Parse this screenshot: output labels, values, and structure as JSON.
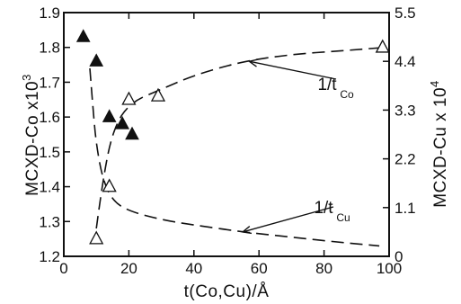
{
  "chart_data": {
    "type": "scatter",
    "title": "",
    "xlabel": "t(Co,Cu)/Å",
    "ylabel_left": "MCXD-Co x10",
    "ylabel_left_exp": "3",
    "ylabel_right": "MCXD-Cu x 10",
    "ylabel_right_exp": "4",
    "xlim": [
      0,
      100
    ],
    "ylim_left": [
      1.2,
      1.9
    ],
    "ylim_right": [
      0,
      5.5
    ],
    "x_ticks": [
      "0",
      "20",
      "40",
      "60",
      "80",
      "100"
    ],
    "x_tick_values": [
      0,
      20,
      40,
      60,
      80,
      100
    ],
    "y_left_ticks": [
      "1.2",
      "1.3",
      "1.4",
      "1.5",
      "1.6",
      "1.7",
      "1.8",
      "1.9"
    ],
    "y_left_tick_values": [
      1.2,
      1.3,
      1.4,
      1.5,
      1.6,
      1.7,
      1.8,
      1.9
    ],
    "y_right_ticks": [
      "0",
      "1.1",
      "2.2",
      "3.3",
      "4.4",
      "5.5"
    ],
    "y_right_tick_values": [
      0,
      1.1,
      2.2,
      3.3,
      4.4,
      5.5
    ],
    "grid": false,
    "series": [
      {
        "marker": "filled-triangle",
        "axis": "left",
        "x": [
          6,
          10,
          14,
          18,
          21
        ],
        "y": [
          1.83,
          1.76,
          1.6,
          1.58,
          1.55
        ]
      },
      {
        "marker": "open-triangle",
        "axis": "left",
        "x": [
          10,
          14,
          20,
          29,
          98
        ],
        "y": [
          1.25,
          1.4,
          1.65,
          1.66,
          1.8
        ]
      }
    ],
    "curves": [
      {
        "style": "dashed",
        "axis": "left",
        "x": [
          8,
          9,
          10,
          12,
          15,
          20,
          30,
          40,
          55,
          70,
          85,
          97
        ],
        "y": [
          1.74,
          1.62,
          1.52,
          1.42,
          1.36,
          1.33,
          1.305,
          1.29,
          1.27,
          1.255,
          1.24,
          1.23
        ]
      },
      {
        "style": "dashed",
        "axis": "left",
        "x": [
          10,
          12,
          15,
          20,
          30,
          40,
          55,
          70,
          85,
          99
        ],
        "y": [
          1.28,
          1.42,
          1.56,
          1.64,
          1.68,
          1.72,
          1.76,
          1.78,
          1.79,
          1.8
        ]
      }
    ],
    "annotations": [
      {
        "text": "1/t",
        "sub": "Co",
        "arrow_to_x": 57,
        "arrow_to_y": 1.76
      },
      {
        "text": "1/t",
        "sub": "Cu",
        "arrow_to_x": 55,
        "arrow_to_y": 1.27
      }
    ]
  }
}
